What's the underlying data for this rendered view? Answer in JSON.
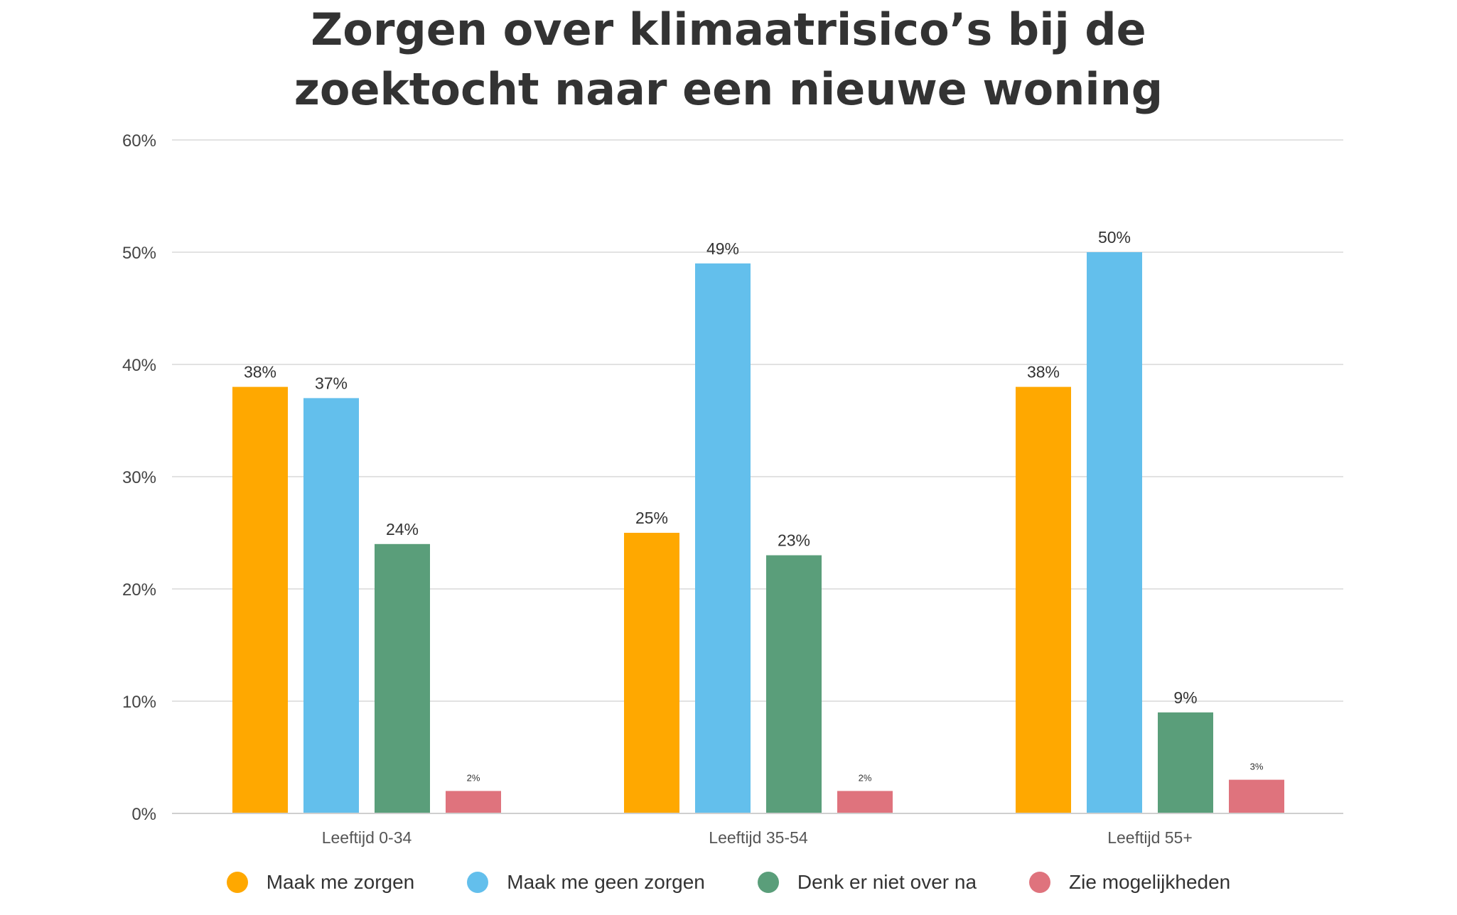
{
  "chart_data": {
    "type": "bar",
    "title": "Zorgen over klimaatrisico’s bij de zoektocht naar een nieuwe woning",
    "title_lines": [
      "Zorgen over klimaatrisico’s bij de",
      "zoektocht naar een nieuwe woning"
    ],
    "xlabel": "",
    "ylabel": "",
    "ylim": [
      0,
      60
    ],
    "yticks": [
      0,
      10,
      20,
      30,
      40,
      50,
      60
    ],
    "ytick_labels": [
      "0%",
      "10%",
      "20%",
      "30%",
      "40%",
      "50%",
      "60%"
    ],
    "grid": true,
    "legend_position": "bottom",
    "categories": [
      "Leeftijd 0-34",
      "Leeftijd 35-54",
      "Leeftijd 55+"
    ],
    "series": [
      {
        "name": "Maak me zorgen",
        "color": "#FFA800",
        "values": [
          38,
          25,
          38
        ],
        "labels": [
          "38%",
          "25%",
          "38%"
        ]
      },
      {
        "name": "Maak me geen zorgen",
        "color": "#63BFEC",
        "values": [
          37,
          49,
          50
        ],
        "labels": [
          "37%",
          "49%",
          "50%"
        ]
      },
      {
        "name": "Denk er niet over na",
        "color": "#5A9E7A",
        "values": [
          24,
          23,
          9
        ],
        "labels": [
          "24%",
          "23%",
          "9%"
        ]
      },
      {
        "name": "Zie mogelijkheden",
        "color": "#DF737D",
        "values": [
          2,
          2,
          3
        ],
        "labels": [
          "2%",
          "2%",
          "3%"
        ]
      }
    ]
  }
}
